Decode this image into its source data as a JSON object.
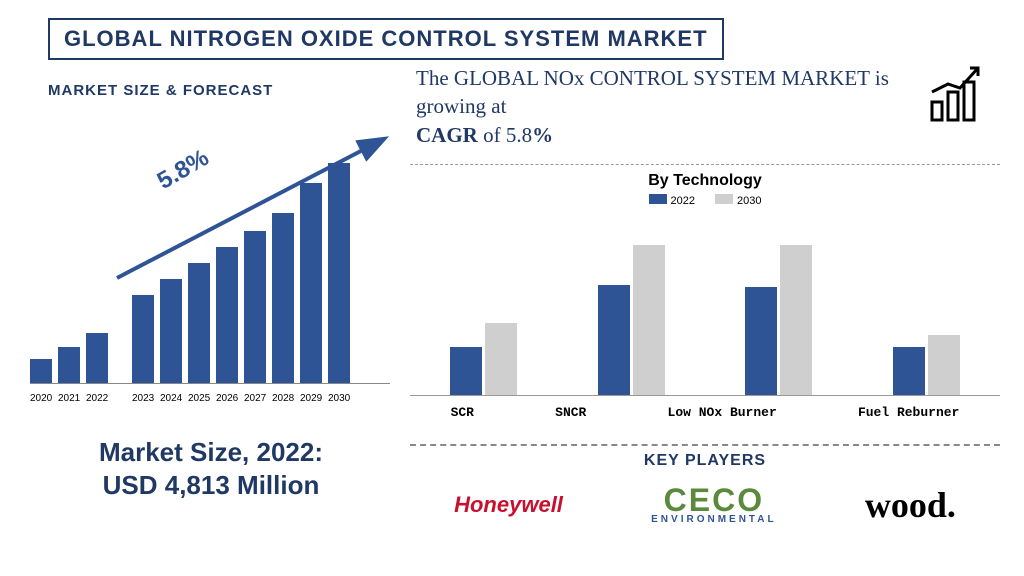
{
  "title": "GLOBAL NITROGEN OXIDE CONTROL SYSTEM MARKET",
  "subtitle_left": "MARKET SIZE & FORECAST",
  "left_chart": {
    "years": [
      "2020",
      "2021",
      "2022",
      "2023",
      "2024",
      "2025",
      "2026",
      "2027",
      "2028",
      "2029",
      "2030"
    ],
    "values_rel": [
      24,
      36,
      50,
      88,
      104,
      120,
      136,
      152,
      170,
      200,
      220
    ],
    "gap_after_index": 2,
    "bar_color": "#2f5496",
    "cagr_label": "5.8%",
    "arrow_color": "#2f5496"
  },
  "market_size_line1": "Market Size, 2022:",
  "market_size_line2": "USD 4,813  Million",
  "headline_plain1": "The GLOBAL NOx CONTROL SYSTEM MARKET is growing at",
  "headline_bold1": "CAGR",
  "headline_plain2": " of 5.8",
  "headline_bold2": "%",
  "tech_chart": {
    "title": "By Technology",
    "legend": [
      "2022",
      "2030"
    ],
    "categories": [
      "SCR",
      "SNCR",
      "Low NOx Burner",
      "Fuel Reburner"
    ],
    "series_2022": [
      48,
      110,
      108,
      48
    ],
    "series_2030": [
      72,
      150,
      150,
      60
    ],
    "color_2022": "#2f5496",
    "color_2030": "#cfcfcf",
    "ymax": 170
  },
  "key_players_title": "KEY PLAYERS",
  "logos": {
    "honeywell": "Honeywell",
    "ceco_main": "CECO",
    "ceco_sub": "ENVIRONMENTAL",
    "wood": "wood."
  },
  "colors": {
    "navy": "#1f3864",
    "bar_blue": "#2f5496",
    "grey": "#cfcfcf",
    "red": "#c8102e",
    "green": "#5b8a3c"
  }
}
